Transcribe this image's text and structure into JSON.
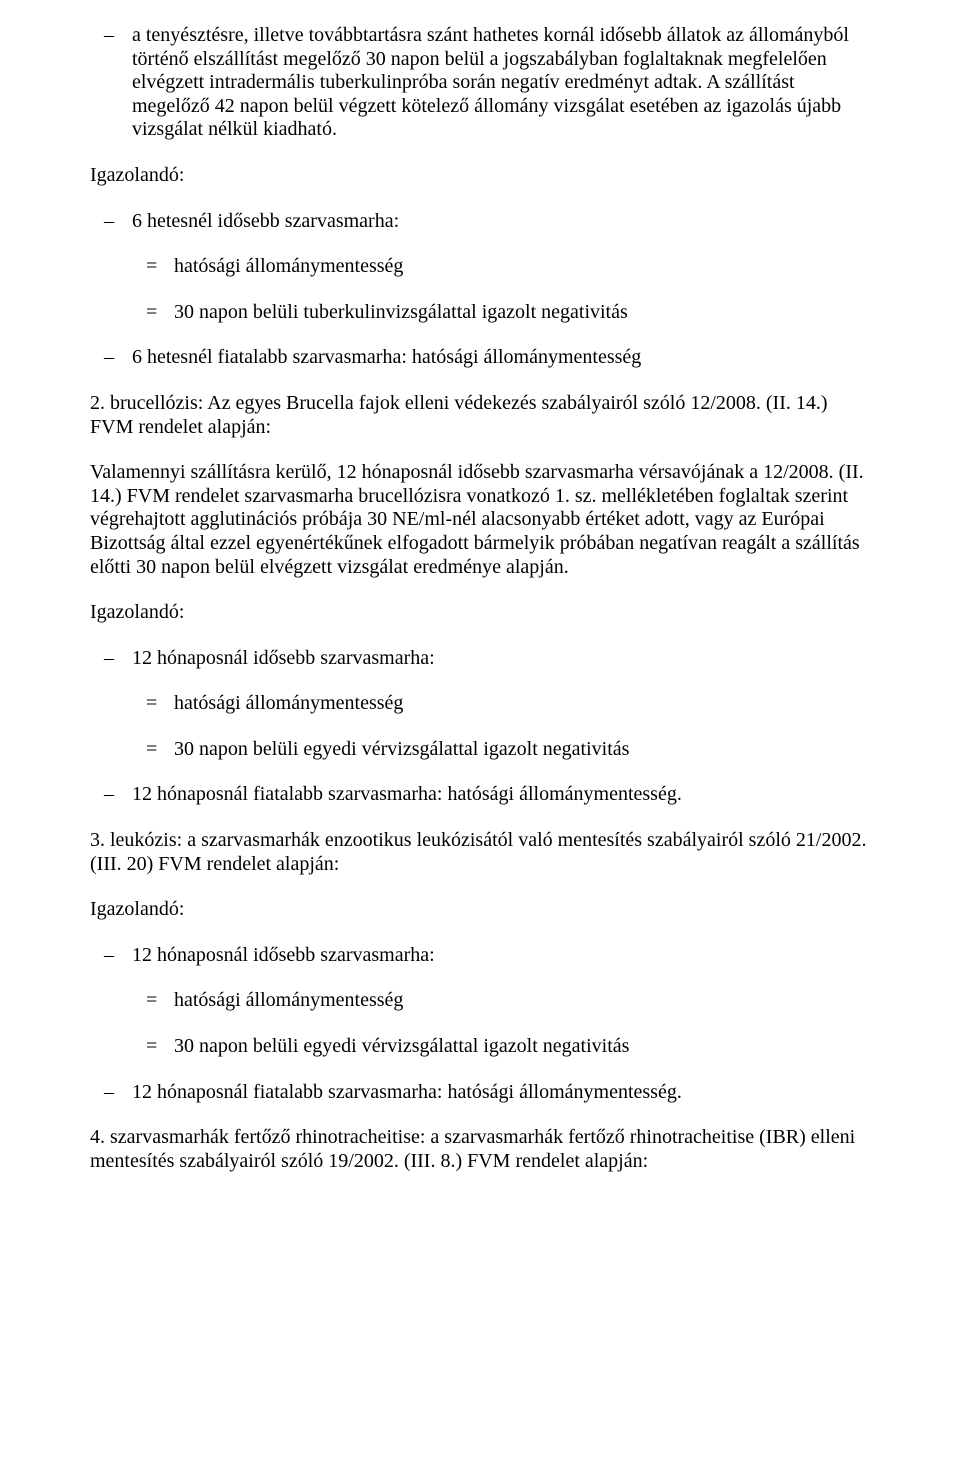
{
  "section1": {
    "dash1": "a tenyésztésre, illetve továbbtartásra szánt hathetes kornál idősebb állatok az állományból történő elszállítást megelőző 30 napon belül a jogszabályban foglaltaknak megfelelően elvégzett intradermális tuberkulinpróba során negatív eredményt adtak. A szállítást megelőző 42 napon belül végzett kötelező állomány vizsgálat esetében az igazolás újabb vizsgálat nélkül kiadható.",
    "igazolando": "Igazolandó:",
    "dash2": "6 hetesnél idősebb szarvasmarha:",
    "eq1": "hatósági állománymentesség",
    "eq2": "30 napon belüli tuberkulinvizsgálattal igazolt negativitás",
    "dash3": "6 hetesnél fiatalabb szarvasmarha: hatósági állománymentesség"
  },
  "section2": {
    "title": "2. brucellózis: Az egyes Brucella fajok elleni védekezés szabályairól szóló 12/2008. (II. 14.) FVM rendelet alapján:",
    "para1": "Valamennyi szállításra kerülő, 12 hónaposnál idősebb szarvasmarha vérsavójának a 12/2008. (II. 14.) FVM rendelet szarvasmarha brucellózisra vonatkozó 1. sz. mellékletében foglaltak szerint végrehajtott agglutinációs próbája 30 NE/ml-nél alacsonyabb értéket adott, vagy az Európai Bizottság által ezzel egyenértékűnek elfogadott bármelyik próbában negatívan reagált a szállítás előtti 30 napon belül elvégzett vizsgálat eredménye alapján.",
    "igazolando": "Igazolandó:",
    "dash1": "12 hónaposnál idősebb szarvasmarha:",
    "eq1": "hatósági állománymentesség",
    "eq2": "30 napon belüli egyedi vérvizsgálattal igazolt negativitás",
    "dash2": "12 hónaposnál fiatalabb szarvasmarha: hatósági állománymentesség."
  },
  "section3": {
    "title": "3. leukózis: a szarvasmarhák enzootikus leukózisától való mentesítés szabályairól szóló 21/2002. (III. 20) FVM rendelet alapján:",
    "igazolando": "Igazolandó:",
    "dash1": "12 hónaposnál idősebb szarvasmarha:",
    "eq1": "hatósági állománymentesség",
    "eq2": "30 napon belüli egyedi vérvizsgálattal igazolt negativitás",
    "dash2": "12 hónaposnál fiatalabb szarvasmarha: hatósági állománymentesség."
  },
  "section4": {
    "title": "4. szarvasmarhák fertőző rhinotracheitise: a szarvasmarhák fertőző rhinotracheitise (IBR) elleni mentesítés szabályairól szóló 19/2002. (III. 8.) FVM rendelet alapján:"
  }
}
